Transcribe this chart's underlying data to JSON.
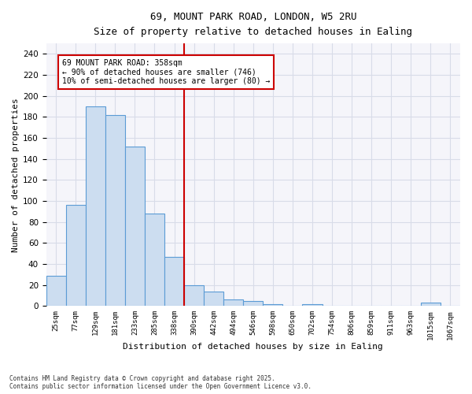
{
  "title_line1": "69, MOUNT PARK ROAD, LONDON, W5 2RU",
  "title_line2": "Size of property relative to detached houses in Ealing",
  "xlabel": "Distribution of detached houses by size in Ealing",
  "ylabel": "Number of detached properties",
  "bar_labels": [
    "25sqm",
    "77sqm",
    "129sqm",
    "181sqm",
    "233sqm",
    "285sqm",
    "338sqm",
    "390sqm",
    "442sqm",
    "494sqm",
    "546sqm",
    "598sqm",
    "650sqm",
    "702sqm",
    "754sqm",
    "806sqm",
    "859sqm",
    "911sqm",
    "963sqm",
    "1015sqm",
    "1067sqm"
  ],
  "bar_values": [
    29,
    96,
    190,
    182,
    152,
    88,
    47,
    20,
    14,
    6,
    5,
    2,
    0,
    2,
    0,
    0,
    0,
    0,
    0,
    3,
    0
  ],
  "bar_color_fill": "#ccddf0",
  "bar_color_edge": "#5b9bd5",
  "vline_x_index": 6.5,
  "vline_color": "#cc0000",
  "annotation_text": "69 MOUNT PARK ROAD: 358sqm\n← 90% of detached houses are smaller (746)\n10% of semi-detached houses are larger (80) →",
  "annotation_box_color": "#cc0000",
  "ylim": [
    0,
    250
  ],
  "yticks": [
    0,
    20,
    40,
    60,
    80,
    100,
    120,
    140,
    160,
    180,
    200,
    220,
    240
  ],
  "grid_color": "#d8dce8",
  "footer_line1": "Contains HM Land Registry data © Crown copyright and database right 2025.",
  "footer_line2": "Contains public sector information licensed under the Open Government Licence v3.0.",
  "bg_color": "#ffffff",
  "plot_bg_color": "#f5f5fa"
}
